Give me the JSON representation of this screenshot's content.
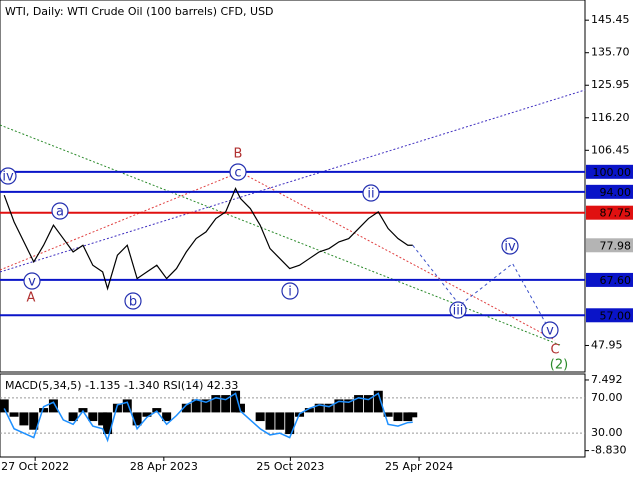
{
  "chart_data": [
    {
      "type": "line",
      "title": "WTI, Daily:  WTI Crude Oil (100 barrels) CFD, USD",
      "x": [
        "2022-09-13",
        "2022-09-27",
        "2022-10-11",
        "2022-10-25",
        "2022-11-08",
        "2022-11-22",
        "2022-12-06",
        "2022-12-20",
        "2023-01-03",
        "2023-01-17",
        "2023-01-31",
        "2023-02-07",
        "2023-02-21",
        "2023-03-07",
        "2023-03-21",
        "2023-04-04",
        "2023-04-18",
        "2023-05-02",
        "2023-05-16",
        "2023-05-30",
        "2023-06-13",
        "2023-06-27",
        "2023-07-11",
        "2023-07-25",
        "2023-08-08",
        "2023-08-15",
        "2023-08-29",
        "2023-09-12",
        "2023-09-26",
        "2023-10-10",
        "2023-10-24",
        "2023-11-07",
        "2023-11-21",
        "2023-12-05",
        "2023-12-19",
        "2024-01-02",
        "2024-01-16",
        "2024-01-30",
        "2024-02-13",
        "2024-02-27",
        "2024-03-12",
        "2024-03-26",
        "2024-04-09",
        "2024-04-16"
      ],
      "values": [
        93,
        85,
        79,
        73,
        78,
        84,
        80,
        76,
        78,
        72,
        70,
        65,
        75,
        78,
        68,
        70,
        72,
        68,
        71,
        76,
        80,
        82,
        86,
        88,
        95,
        92,
        89,
        84,
        77,
        74,
        71,
        72,
        74,
        76,
        77,
        79,
        80,
        83,
        86,
        88,
        83,
        80,
        78,
        77.98
      ],
      "color": "#000000",
      "projection": {
        "x": [
          "2024-04-16",
          "2024-06-22",
          "2024-09-05",
          "2024-10-29"
        ],
        "values": [
          77.98,
          60,
          72.5,
          52
        ],
        "color": "#3a50c8"
      },
      "xlim": [
        "2022-09-07",
        "2024-12-17"
      ],
      "xticks": [
        {
          "value": "2022-10-27",
          "label": "27 Oct 2022"
        },
        {
          "value": "2023-04-28",
          "label": "28 Apr 2023"
        },
        {
          "value": "2023-10-25",
          "label": "25 Oct 2023"
        },
        {
          "value": "2024-04-25",
          "label": "25 Apr 2024"
        }
      ],
      "ylim": [
        40,
        151.5
      ],
      "yticks": [
        145.45,
        {
          "value": 135.7,
          "label": "135.70"
        },
        125.95,
        {
          "value": 116.2,
          "label": "116.20"
        },
        106.45,
        47.95
      ],
      "levels": [
        {
          "value": 100,
          "label": "100.00",
          "color": "#0a14c8"
        },
        {
          "value": 94,
          "label": "94.00",
          "color": "#0a14c8"
        },
        {
          "value": 87.75,
          "label": "87.75",
          "color": "#e01010"
        },
        {
          "value": 67.6,
          "label": "67.60",
          "color": "#0a14c8"
        },
        {
          "value": 57,
          "label": "57.00",
          "color": "#0a14c8"
        }
      ],
      "current_price": {
        "value": 77.98,
        "label": "77.98",
        "color": "#b4b4b4"
      },
      "annotations": [
        "iv",
        "a",
        "v",
        "A",
        "B",
        "c",
        "b",
        "i",
        "ii",
        "iii",
        "iv",
        "v",
        "C",
        "(2)"
      ]
    },
    {
      "type": "macd",
      "title": "MACD(5,34,5) -1.135 -1.340 RSI(14) 42.33",
      "values": [
        3,
        -1,
        -3,
        -4,
        1,
        3,
        0,
        -2,
        1,
        -2,
        -3,
        -5,
        2,
        3,
        -3,
        -1,
        1,
        -2,
        0,
        2,
        3,
        3,
        4,
        4,
        5,
        2,
        0,
        -2,
        -4,
        -4,
        -5,
        -1,
        1,
        2,
        2,
        3,
        3,
        4,
        4,
        5,
        -1,
        -2,
        -2,
        -1.135
      ],
      "color": "#000000",
      "rsi": {
        "values": [
          58,
          35,
          30,
          25,
          60,
          65,
          45,
          40,
          55,
          38,
          35,
          22,
          62,
          65,
          35,
          48,
          55,
          40,
          50,
          62,
          68,
          65,
          70,
          68,
          75,
          55,
          45,
          35,
          28,
          30,
          25,
          52,
          58,
          62,
          60,
          66,
          65,
          70,
          68,
          75,
          40,
          38,
          42,
          42.33
        ],
        "color": "#1e90ff",
        "axis": "y2"
      },
      "ylim": [
        -10.3,
        8.87
      ],
      "yticks": [
        7.492,
        {
          "value": -8.83,
          "label": "-8.830"
        }
      ],
      "y2lim": [
        3,
        97
      ],
      "y2ticks": [
        {
          "value": 70,
          "label": "70.00"
        },
        {
          "value": 30,
          "label": "30.00"
        }
      ]
    }
  ]
}
